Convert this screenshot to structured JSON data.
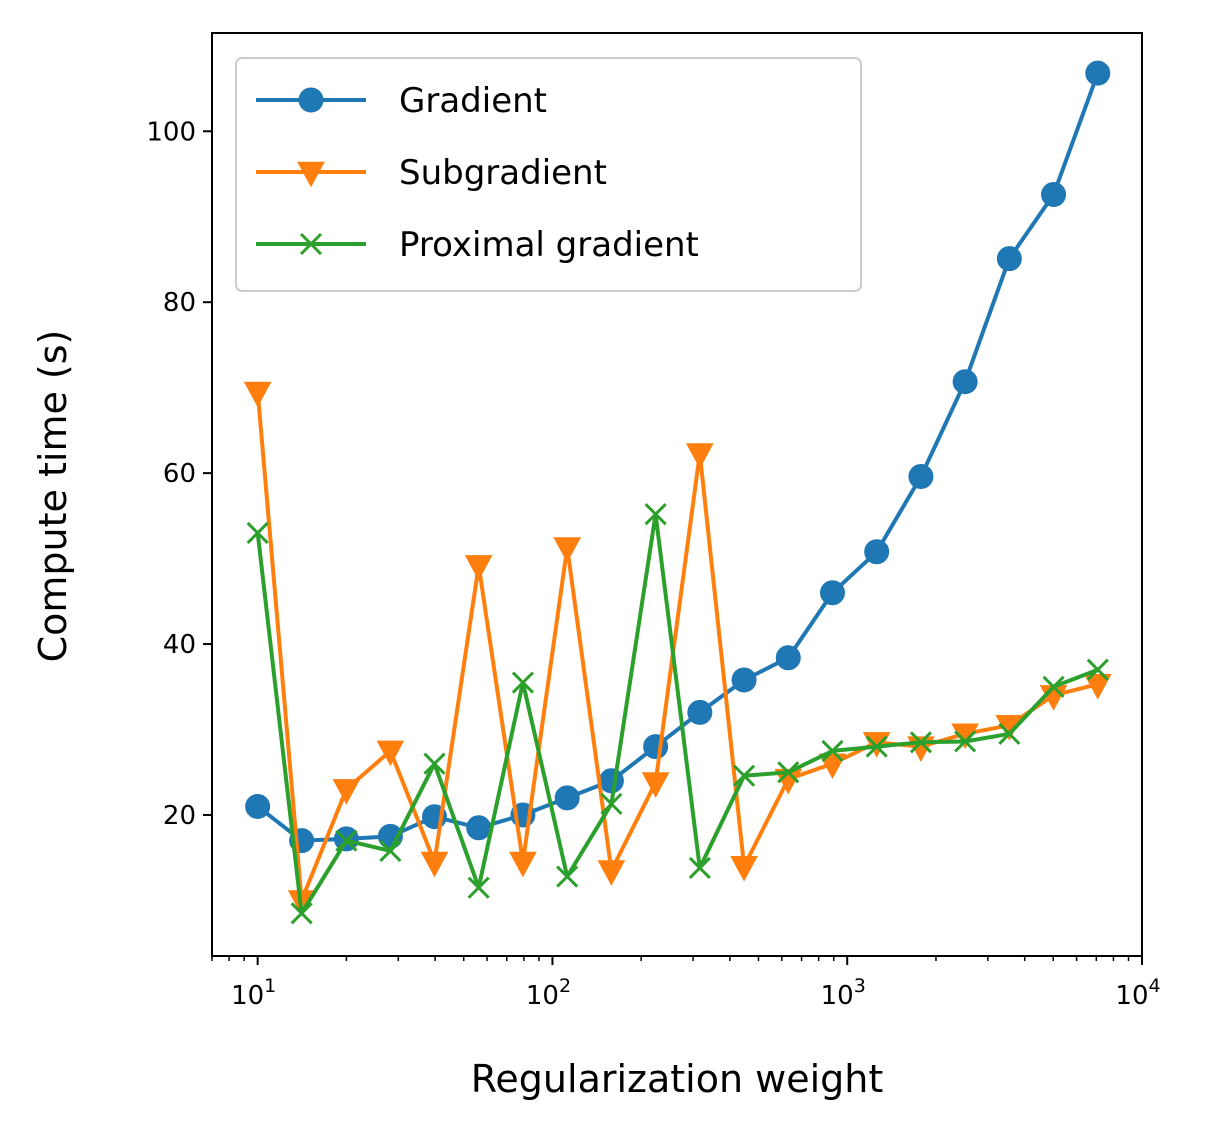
{
  "chart_data": {
    "type": "line",
    "xlabel": "Regularization weight",
    "ylabel": "Compute time (s)",
    "xscale": "log",
    "xlim": [
      7.0,
      10000
    ],
    "ylim": [
      3.5,
      111.5
    ],
    "grid": false,
    "legend_position": "top-left",
    "xticks": [
      {
        "value": 10,
        "base": "10",
        "exp": "1"
      },
      {
        "value": 100,
        "base": "10",
        "exp": "2"
      },
      {
        "value": 1000,
        "base": "10",
        "exp": "3"
      },
      {
        "value": 10000,
        "base": "10",
        "exp": "4"
      }
    ],
    "yticks": [
      {
        "value": 20,
        "label": "20"
      },
      {
        "value": 40,
        "label": "40"
      },
      {
        "value": 60,
        "label": "60"
      },
      {
        "value": 80,
        "label": "80"
      },
      {
        "value": 100,
        "label": "100"
      }
    ],
    "x": [
      10,
      14.1,
      20.0,
      28.2,
      39.8,
      56.2,
      79.4,
      112.2,
      158.5,
      223.9,
      316.2,
      446.7,
      631.0,
      891.3,
      1258.9,
      1778.3,
      2511.9,
      3548.1,
      5011.9,
      7079.5
    ],
    "series": [
      {
        "name": "Gradient",
        "color": "#1f77b4",
        "marker": "circle",
        "values": [
          21.0,
          17.0,
          17.2,
          17.5,
          19.8,
          18.5,
          20.0,
          22.0,
          24.0,
          28.0,
          32.0,
          35.8,
          38.4,
          46.0,
          50.8,
          59.6,
          70.7,
          85.1,
          92.6,
          106.8
        ]
      },
      {
        "name": "Subgradient",
        "color": "#ff7f0e",
        "marker": "triangle-down",
        "values": [
          69.5,
          10.0,
          23.0,
          27.5,
          14.5,
          49.2,
          14.5,
          51.3,
          13.5,
          23.8,
          62.3,
          14.0,
          24.2,
          26.0,
          28.5,
          28.0,
          29.5,
          30.5,
          34.0,
          35.3
        ]
      },
      {
        "name": "Proximal gradient",
        "color": "#2ca02c",
        "marker": "x",
        "values": [
          53.0,
          8.5,
          17.0,
          15.8,
          26.0,
          11.5,
          35.5,
          12.8,
          21.3,
          55.2,
          13.8,
          24.6,
          25.0,
          27.5,
          28.0,
          28.5,
          28.6,
          29.5,
          35.0,
          37.0
        ]
      }
    ]
  }
}
